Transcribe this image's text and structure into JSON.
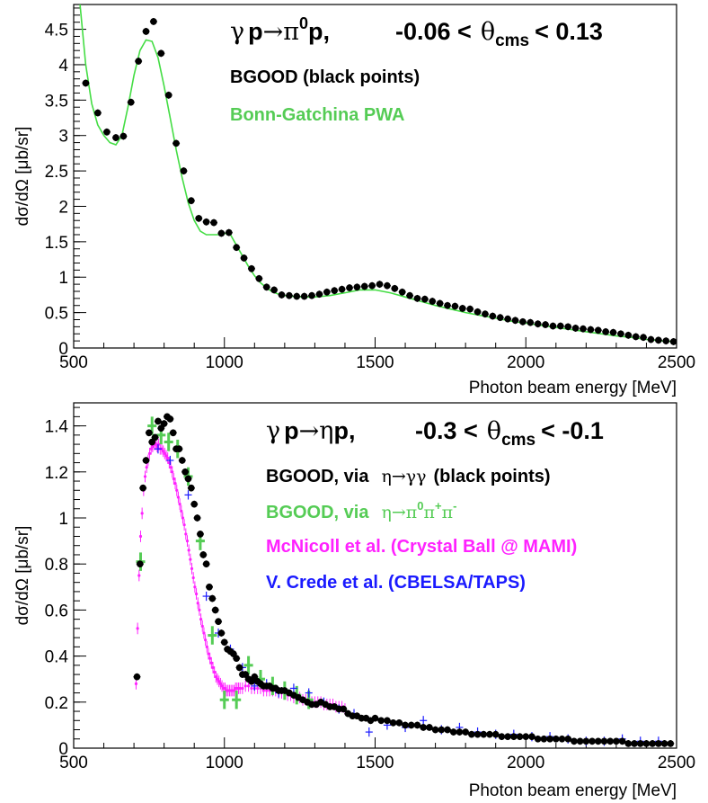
{
  "colors": {
    "bgood": "#000000",
    "bonn_gatchina": "#44dd44",
    "bgood_3pi": "#55cc55",
    "mcnicoll": "#ff22ff",
    "crede": "#1a1aff"
  },
  "chart_data": [
    {
      "type": "scatter",
      "title_parts": {
        "gamma": "γ",
        "p1": "p",
        "arrow": "→",
        "pi": "π",
        "zero": "0",
        "p2": "p,",
        "range_low": "-0.06 <",
        "theta": "θ",
        "cms": "cms",
        "range_high": "< 0.13"
      },
      "xlabel": "Photon beam energy [MeV]",
      "ylabel": "dσ/dΩ  [μb/sr]",
      "xlim": [
        500,
        2500
      ],
      "ylim": [
        0,
        4.85
      ],
      "xticks": [
        "500",
        "1000",
        "1500",
        "2000",
        "2500"
      ],
      "yticks": [
        "0",
        "0.5",
        "1",
        "1.5",
        "2",
        "2.5",
        "3",
        "3.5",
        "4",
        "4.5"
      ],
      "legend": [
        {
          "label": "BGOOD (black points)",
          "color": "#000000"
        },
        {
          "label": "Bonn-Gatchina PWA",
          "color": "#44dd44"
        }
      ],
      "series": [
        {
          "name": "BGOOD (black points)",
          "kind": "points",
          "color": "#000000",
          "x": [
            540,
            580,
            610,
            640,
            665,
            690,
            715,
            740,
            765,
            790,
            815,
            840,
            865,
            890,
            915,
            940,
            965,
            990,
            1015,
            1040,
            1065,
            1090,
            1115,
            1140,
            1165,
            1190,
            1215,
            1240,
            1265,
            1290,
            1315,
            1340,
            1365,
            1390,
            1415,
            1440,
            1465,
            1490,
            1515,
            1540,
            1565,
            1590,
            1615,
            1640,
            1665,
            1690,
            1715,
            1740,
            1765,
            1790,
            1815,
            1840,
            1865,
            1890,
            1915,
            1940,
            1965,
            1990,
            2015,
            2040,
            2065,
            2090,
            2115,
            2140,
            2165,
            2190,
            2215,
            2240,
            2265,
            2290,
            2315,
            2340,
            2365,
            2390,
            2415,
            2440,
            2465,
            2490
          ],
          "y": [
            3.74,
            3.32,
            3.05,
            2.97,
            2.99,
            3.47,
            4.05,
            4.47,
            4.61,
            4.16,
            3.57,
            2.89,
            2.5,
            2.08,
            1.83,
            1.78,
            1.77,
            1.62,
            1.63,
            1.42,
            1.27,
            1.12,
            0.98,
            0.86,
            0.82,
            0.75,
            0.74,
            0.73,
            0.73,
            0.74,
            0.76,
            0.79,
            0.81,
            0.83,
            0.85,
            0.86,
            0.87,
            0.88,
            0.9,
            0.88,
            0.84,
            0.79,
            0.74,
            0.7,
            0.69,
            0.66,
            0.63,
            0.6,
            0.59,
            0.56,
            0.55,
            0.51,
            0.48,
            0.45,
            0.43,
            0.41,
            0.39,
            0.37,
            0.36,
            0.34,
            0.33,
            0.31,
            0.31,
            0.3,
            0.28,
            0.27,
            0.26,
            0.25,
            0.23,
            0.22,
            0.2,
            0.18,
            0.16,
            0.15,
            0.12,
            0.11,
            0.1,
            0.09
          ],
          "yerr": 0.05
        },
        {
          "name": "Bonn-Gatchina PWA",
          "kind": "line",
          "color": "#44dd44",
          "x": [
            520,
            540,
            560,
            580,
            600,
            620,
            640,
            660,
            680,
            700,
            720,
            740,
            760,
            780,
            800,
            820,
            840,
            860,
            880,
            900,
            920,
            940,
            960,
            980,
            1000,
            1020,
            1040,
            1060,
            1080,
            1100,
            1120,
            1140,
            1160,
            1180,
            1200,
            1250,
            1300,
            1350,
            1400,
            1450,
            1500,
            1550,
            1600,
            1650,
            1700,
            1750,
            1800,
            1850,
            1900,
            1950,
            2000,
            2050,
            2100,
            2150,
            2200,
            2250,
            2300,
            2350,
            2400,
            2450,
            2500
          ],
          "y": [
            4.9,
            4.0,
            3.45,
            3.15,
            3.0,
            2.9,
            2.87,
            3.0,
            3.4,
            3.85,
            4.2,
            4.35,
            4.33,
            4.1,
            3.7,
            3.25,
            2.8,
            2.4,
            2.05,
            1.8,
            1.65,
            1.6,
            1.6,
            1.6,
            1.62,
            1.6,
            1.45,
            1.3,
            1.15,
            1.02,
            0.92,
            0.85,
            0.79,
            0.76,
            0.74,
            0.72,
            0.72,
            0.74,
            0.78,
            0.82,
            0.82,
            0.78,
            0.72,
            0.66,
            0.6,
            0.55,
            0.5,
            0.46,
            0.42,
            0.38,
            0.35,
            0.32,
            0.29,
            0.26,
            0.23,
            0.2,
            0.17,
            0.15,
            0.12,
            0.1,
            0.09
          ]
        }
      ]
    },
    {
      "type": "scatter",
      "title_parts": {
        "gamma": "γ",
        "p1": "p",
        "arrow": "→",
        "eta": "η",
        "p2": "p,",
        "range_low": "-0.3 <",
        "theta": "θ",
        "cms": "cms",
        "range_high": "< -0.1"
      },
      "xlabel": "Photon beam energy [MeV]",
      "ylabel": "dσ/dΩ  [μb/sr]",
      "xlim": [
        500,
        2500
      ],
      "ylim": [
        0,
        1.5
      ],
      "xticks": [
        "500",
        "1000",
        "1500",
        "2000",
        "2500"
      ],
      "yticks": [
        "0",
        "0.2",
        "0.4",
        "0.6",
        "0.8",
        "1",
        "1.2",
        "1.4"
      ],
      "legend": [
        {
          "prefix": "BGOOD, via",
          "eta": "η",
          "arrow": "→",
          "rest": "γγ",
          "suffix": "(black points)",
          "color": "#000000"
        },
        {
          "prefix": "BGOOD, via",
          "eta": "η",
          "arrow": "→",
          "pi0": "π",
          "sup0": "0",
          "pip": "π",
          "supp": "+",
          "pim": "π",
          "supm": "-",
          "color": "#55cc55"
        },
        {
          "label": "McNicoll et al. (Crystal Ball @ MAMI)",
          "color": "#ff22ff"
        },
        {
          "label": "V. Crede et al. (CBELSA/TAPS)",
          "color": "#1a1aff"
        }
      ],
      "series": [
        {
          "name": "BGOOD, via η→γγ (black points)",
          "kind": "points",
          "color": "#000000",
          "x": [
            710,
            720,
            730,
            740,
            750,
            760,
            770,
            780,
            790,
            800,
            810,
            820,
            830,
            840,
            850,
            860,
            870,
            880,
            890,
            900,
            910,
            920,
            930,
            940,
            950,
            960,
            970,
            980,
            990,
            1000,
            1010,
            1020,
            1030,
            1040,
            1050,
            1060,
            1070,
            1080,
            1090,
            1100,
            1110,
            1120,
            1130,
            1140,
            1150,
            1160,
            1170,
            1180,
            1190,
            1200,
            1215,
            1230,
            1245,
            1260,
            1275,
            1290,
            1305,
            1320,
            1335,
            1350,
            1365,
            1380,
            1395,
            1410,
            1425,
            1440,
            1455,
            1470,
            1485,
            1500,
            1520,
            1540,
            1560,
            1580,
            1600,
            1620,
            1640,
            1660,
            1680,
            1700,
            1720,
            1740,
            1760,
            1780,
            1800,
            1820,
            1840,
            1860,
            1880,
            1900,
            1920,
            1940,
            1960,
            1980,
            2000,
            2020,
            2040,
            2060,
            2080,
            2100,
            2120,
            2140,
            2160,
            2180,
            2200,
            2220,
            2240,
            2260,
            2280,
            2300,
            2320,
            2340,
            2360,
            2380,
            2400,
            2420,
            2440,
            2460,
            2480
          ],
          "y": [
            0.31,
            0.8,
            1.13,
            1.25,
            1.37,
            1.33,
            1.35,
            1.42,
            1.39,
            1.41,
            1.44,
            1.43,
            1.37,
            1.3,
            1.3,
            1.25,
            1.2,
            1.17,
            1.13,
            1.06,
            1.0,
            0.93,
            0.84,
            0.8,
            0.7,
            0.65,
            0.6,
            0.55,
            0.5,
            0.46,
            0.43,
            0.42,
            0.41,
            0.39,
            0.35,
            0.32,
            0.32,
            0.3,
            0.29,
            0.31,
            0.29,
            0.28,
            0.27,
            0.27,
            0.27,
            0.26,
            0.26,
            0.25,
            0.25,
            0.25,
            0.24,
            0.23,
            0.22,
            0.21,
            0.2,
            0.19,
            0.19,
            0.2,
            0.19,
            0.18,
            0.18,
            0.17,
            0.17,
            0.15,
            0.14,
            0.14,
            0.13,
            0.13,
            0.12,
            0.13,
            0.12,
            0.12,
            0.11,
            0.11,
            0.1,
            0.1,
            0.1,
            0.09,
            0.09,
            0.08,
            0.08,
            0.08,
            0.07,
            0.07,
            0.07,
            0.06,
            0.06,
            0.06,
            0.06,
            0.06,
            0.05,
            0.05,
            0.05,
            0.05,
            0.05,
            0.05,
            0.04,
            0.04,
            0.04,
            0.04,
            0.04,
            0.04,
            0.03,
            0.03,
            0.03,
            0.03,
            0.03,
            0.03,
            0.03,
            0.03,
            0.03,
            0.02,
            0.02,
            0.02,
            0.02,
            0.02,
            0.02,
            0.02,
            0.02
          ],
          "yerr": 0.015
        },
        {
          "name": "BGOOD, via η→π0π+π-",
          "kind": "cross",
          "color": "#55cc55",
          "x": [
            722,
            760,
            790,
            815,
            845,
            880,
            920,
            960,
            1000,
            1040,
            1080,
            1120,
            1160,
            1200,
            1240,
            1280
          ],
          "y": [
            0.81,
            1.4,
            1.36,
            1.33,
            1.3,
            1.18,
            0.9,
            0.49,
            0.21,
            0.21,
            0.36,
            0.3,
            0.27,
            0.25,
            0.23,
            0.21
          ],
          "yerr": 0.04,
          "xerr": 15
        },
        {
          "name": "McNicoll et al. (Crystal Ball @ MAMI)",
          "kind": "fine",
          "color": "#ff22ff",
          "x": [
            707,
            712,
            717,
            722,
            727,
            732,
            737,
            742,
            747,
            752,
            757,
            762,
            767,
            772,
            777,
            782,
            787,
            792,
            797,
            802,
            807,
            812,
            817,
            822,
            827,
            832,
            837,
            842,
            847,
            852,
            857,
            862,
            867,
            872,
            877,
            882,
            887,
            892,
            897,
            902,
            907,
            912,
            917,
            922,
            927,
            932,
            937,
            942,
            947,
            952,
            957,
            962,
            967,
            972,
            977,
            982,
            987,
            992,
            997,
            1002,
            1007,
            1012,
            1017,
            1022,
            1027,
            1032,
            1037,
            1042,
            1047,
            1052,
            1060,
            1070,
            1080,
            1090,
            1100,
            1110,
            1120,
            1130,
            1140,
            1150,
            1160,
            1170,
            1180,
            1190,
            1200,
            1210,
            1220,
            1230,
            1240,
            1250,
            1260,
            1270,
            1280,
            1290,
            1300,
            1310,
            1320,
            1330,
            1340,
            1350,
            1360,
            1370,
            1380,
            1390,
            1400
          ],
          "y": [
            0.28,
            0.52,
            0.75,
            0.92,
            1.02,
            1.12,
            1.18,
            1.22,
            1.25,
            1.28,
            1.3,
            1.31,
            1.32,
            1.32,
            1.31,
            1.32,
            1.3,
            1.3,
            1.29,
            1.28,
            1.27,
            1.26,
            1.24,
            1.22,
            1.2,
            1.17,
            1.15,
            1.12,
            1.09,
            1.06,
            1.03,
            1.0,
            0.97,
            0.93,
            0.9,
            0.86,
            0.82,
            0.78,
            0.74,
            0.7,
            0.67,
            0.63,
            0.6,
            0.56,
            0.53,
            0.5,
            0.47,
            0.44,
            0.41,
            0.39,
            0.37,
            0.35,
            0.33,
            0.31,
            0.3,
            0.29,
            0.28,
            0.27,
            0.26,
            0.26,
            0.25,
            0.25,
            0.25,
            0.25,
            0.25,
            0.25,
            0.26,
            0.26,
            0.26,
            0.26,
            0.26,
            0.27,
            0.27,
            0.26,
            0.26,
            0.26,
            0.26,
            0.25,
            0.25,
            0.25,
            0.25,
            0.25,
            0.24,
            0.24,
            0.24,
            0.23,
            0.23,
            0.22,
            0.22,
            0.22,
            0.21,
            0.21,
            0.21,
            0.2,
            0.2,
            0.2,
            0.2,
            0.19,
            0.19,
            0.19,
            0.19,
            0.18,
            0.18,
            0.18,
            0.17
          ],
          "yerr": 0.025
        },
        {
          "name": "V. Crede et al. (CBELSA/TAPS)",
          "kind": "cross",
          "color": "#1a1aff",
          "x": [
            780,
            820,
            880,
            940,
            980,
            1020,
            1060,
            1100,
            1140,
            1180,
            1230,
            1280,
            1330,
            1380,
            1430,
            1480,
            1540,
            1600,
            1660,
            1720,
            1780,
            1840,
            1900,
            1960,
            2020,
            2080,
            2140,
            2200,
            2260,
            2320,
            2380,
            2440
          ],
          "y": [
            1.3,
            1.25,
            1.1,
            0.66,
            0.5,
            0.43,
            0.35,
            0.27,
            0.28,
            0.24,
            0.26,
            0.24,
            0.2,
            0.17,
            0.15,
            0.07,
            0.1,
            0.09,
            0.12,
            0.08,
            0.09,
            0.07,
            0.06,
            0.06,
            0.05,
            0.05,
            0.04,
            0.03,
            0.03,
            0.04,
            0.03,
            0.03
          ],
          "yerr": 0.02,
          "xerr": 12
        }
      ]
    }
  ]
}
